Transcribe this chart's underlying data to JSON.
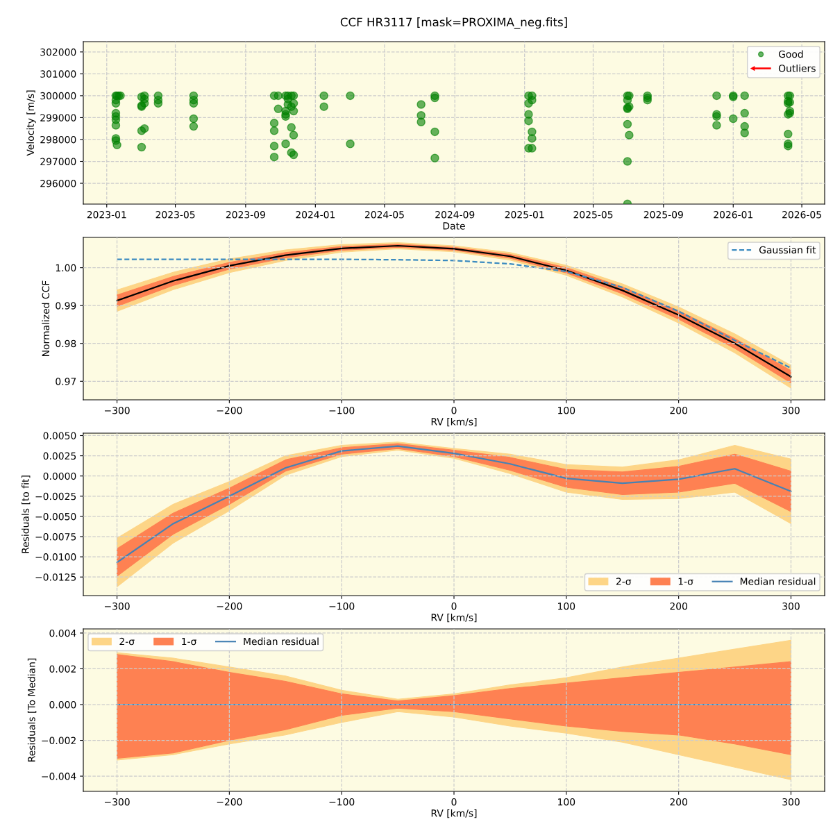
{
  "chart_data": [
    {
      "type": "scatter",
      "title": "CCF HR3117 [mask=PROXIMA_neg.fits]",
      "xlabel": "Date",
      "ylabel": "Velocity [m/s]",
      "xlim": [
        "2022-11-21",
        "2026-06-10"
      ],
      "xticks": [
        {
          "value": "2023-01",
          "label": "2023-01"
        },
        {
          "value": "2023-05",
          "label": "2023-05"
        },
        {
          "value": "2023-09",
          "label": "2023-09"
        },
        {
          "value": "2024-01",
          "label": "2024-01"
        },
        {
          "value": "2024-05",
          "label": "2024-05"
        },
        {
          "value": "2024-09",
          "label": "2024-09"
        },
        {
          "value": "2025-01",
          "label": "2025-01"
        },
        {
          "value": "2025-05",
          "label": "2025-05"
        },
        {
          "value": "2025-09",
          "label": "2025-09"
        },
        {
          "value": "2026-01",
          "label": "2026-01"
        },
        {
          "value": "2026-05",
          "label": "2026-05"
        }
      ],
      "ylim": [
        295050,
        302470
      ],
      "yticks": [
        296000,
        297000,
        298000,
        299000,
        300000,
        301000,
        302000
      ],
      "grid": true,
      "legend": "top right",
      "marker": "circle",
      "series": [
        {
          "name": "Good",
          "color": "#008000",
          "x": [
            "2023-01-17",
            "2023-01-17",
            "2023-01-17",
            "2023-01-17",
            "2023-01-17",
            "2023-01-17",
            "2023-01-17",
            "2023-01-17",
            "2023-01-17",
            "2023-01-19",
            "2023-01-19",
            "2023-01-22",
            "2023-01-25",
            "2023-03-03",
            "2023-03-03",
            "2023-03-03",
            "2023-03-03",
            "2023-03-03",
            "2023-03-08",
            "2023-03-08",
            "2023-03-08",
            "2023-03-08",
            "2023-04-01",
            "2023-04-01",
            "2023-04-01",
            "2023-06-02",
            "2023-06-02",
            "2023-06-02",
            "2023-06-02",
            "2023-06-02",
            "2023-10-21",
            "2023-10-21",
            "2023-10-21",
            "2023-10-21",
            "2023-10-21",
            "2023-10-28",
            "2023-10-28",
            "2023-11-10",
            "2023-11-10",
            "2023-11-10",
            "2023-11-10",
            "2023-11-10",
            "2023-11-14",
            "2023-11-14",
            "2023-11-14",
            "2023-11-20",
            "2023-11-20",
            "2023-11-20",
            "2023-11-20",
            "2023-11-24",
            "2023-11-24",
            "2023-11-24",
            "2023-11-24",
            "2023-11-24",
            "2024-01-16",
            "2024-01-16",
            "2024-03-02",
            "2024-03-02",
            "2024-07-04",
            "2024-07-04",
            "2024-07-04",
            "2024-07-28",
            "2024-07-28",
            "2024-07-28",
            "2024-07-28",
            "2025-01-08",
            "2025-01-08",
            "2025-01-08",
            "2025-01-08",
            "2025-01-08",
            "2025-01-14",
            "2025-01-14",
            "2025-01-14",
            "2025-01-14",
            "2025-01-14",
            "2025-06-30",
            "2025-06-30",
            "2025-06-30",
            "2025-06-30",
            "2025-06-30",
            "2025-06-30",
            "2025-06-30",
            "2025-07-03",
            "2025-07-03",
            "2025-07-03",
            "2025-08-04",
            "2025-08-04",
            "2025-08-04",
            "2025-12-03",
            "2025-12-03",
            "2025-12-03",
            "2025-12-03",
            "2026-01-01",
            "2026-01-01",
            "2026-01-01",
            "2026-01-21",
            "2026-01-21",
            "2026-01-21",
            "2026-01-21",
            "2026-04-07",
            "2026-04-07",
            "2026-04-07",
            "2026-04-07",
            "2026-04-07",
            "2026-04-07",
            "2026-04-07",
            "2026-04-10",
            "2026-04-10",
            "2026-04-10",
            "2026-04-10"
          ],
          "values": [
            300000,
            299800,
            299650,
            299200,
            299050,
            298900,
            298650,
            298050,
            297950,
            297750,
            300000,
            300000,
            300000,
            299950,
            299550,
            299500,
            298400,
            297650,
            300000,
            299850,
            299650,
            298500,
            300000,
            299800,
            299650,
            300000,
            299800,
            299650,
            298950,
            298600,
            300000,
            298750,
            298400,
            297700,
            297200,
            300000,
            299400,
            300000,
            299300,
            299150,
            299050,
            297800,
            300000,
            299850,
            299600,
            300000,
            299500,
            298550,
            297400,
            300000,
            299650,
            299300,
            298200,
            297300,
            300000,
            299500,
            300000,
            297800,
            299600,
            299100,
            298800,
            300000,
            299900,
            298350,
            297150,
            300000,
            299650,
            299150,
            298850,
            297600,
            300000,
            299800,
            298350,
            298050,
            297600,
            300000,
            299800,
            299450,
            299400,
            298700,
            297000,
            295060,
            300000,
            299500,
            298200,
            300000,
            299900,
            299800,
            300000,
            299150,
            299050,
            298650,
            300000,
            299950,
            298950,
            300000,
            299200,
            298600,
            298300,
            300000,
            299750,
            299650,
            299150,
            298250,
            297800,
            297700,
            300000,
            299700,
            299300,
            299200
          ]
        },
        {
          "name": "Outliers",
          "color": "#ff0000",
          "marker": "arrow"
        }
      ]
    },
    {
      "type": "line",
      "xlabel": "RV [km/s]",
      "ylabel": "Normalized CCF",
      "x": [
        -300,
        -250,
        -200,
        -150,
        -100,
        -50,
        0,
        50,
        100,
        150,
        200,
        250,
        300
      ],
      "xlim": [
        -330,
        330
      ],
      "xticks": [
        {
          "value": -300,
          "label": "−300"
        },
        {
          "value": -200,
          "label": "−200"
        },
        {
          "value": -100,
          "label": "−100"
        },
        0,
        100,
        200,
        300
      ],
      "ylim": [
        0.9651,
        1.008
      ],
      "yticks": [
        {
          "value": 0.97,
          "label": "0.97"
        },
        {
          "value": 0.98,
          "label": "0.98"
        },
        {
          "value": 0.99,
          "label": "0.99"
        },
        {
          "value": 1.0,
          "label": "1.00"
        }
      ],
      "grid": true,
      "legend": "top right",
      "series": [
        {
          "type": "area",
          "color": "#fdd587",
          "values": [
            null,
            null,
            null,
            null,
            null,
            null,
            null,
            null,
            null,
            null,
            null,
            null,
            null
          ],
          "lower": [
            0.9885,
            0.9942,
            0.9987,
            1.0019,
            1.0041,
            1.005,
            1.0042,
            1.002,
            0.998,
            0.9923,
            0.9854,
            0.9775,
            0.9682
          ],
          "upper": [
            0.9941,
            0.9988,
            1.0023,
            1.0047,
            1.0061,
            1.0066,
            1.0058,
            1.004,
            1.0006,
            0.9957,
            0.9896,
            0.9825,
            0.9742
          ]
        },
        {
          "type": "area",
          "color": "#fe8152",
          "values": [
            null,
            null,
            null,
            null,
            null,
            null,
            null,
            null,
            null,
            null,
            null,
            null,
            null
          ],
          "lower": [
            0.9898,
            0.9953,
            0.9996,
            1.0026,
            1.0046,
            1.0054,
            1.0046,
            1.0025,
            0.9986,
            0.9931,
            0.9864,
            0.9787,
            0.9696
          ],
          "upper": [
            0.9928,
            0.9977,
            1.0014,
            1.004,
            1.0056,
            1.0062,
            1.0054,
            1.0035,
            1.0,
            0.9949,
            0.9886,
            0.9813,
            0.9728
          ]
        },
        {
          "color": "#000000",
          "line_style": "solid",
          "values": [
            0.9913,
            0.9965,
            1.0005,
            1.0033,
            1.0051,
            1.0058,
            1.005,
            1.003,
            0.9993,
            0.994,
            0.9875,
            0.98,
            0.9712
          ]
        },
        {
          "name": "Gaussian fit",
          "color": "#3a8ac0",
          "line_style": "dashed",
          "values": [
            1.0022,
            1.0022,
            1.0022,
            1.0022,
            1.0022,
            1.0021,
            1.0019,
            1.001,
            0.999,
            0.9948,
            0.9885,
            0.9808,
            0.9735
          ]
        }
      ]
    },
    {
      "type": "line",
      "xlabel": "RV [km/s]",
      "ylabel": "Residuals [to fit]",
      "x": [
        -300,
        -250,
        -200,
        -150,
        -100,
        -50,
        0,
        50,
        100,
        150,
        200,
        250,
        300
      ],
      "xlim": [
        -330,
        330
      ],
      "xticks": [
        {
          "value": -300,
          "label": "−300"
        },
        {
          "value": -200,
          "label": "−200"
        },
        {
          "value": -100,
          "label": "−100"
        },
        0,
        100,
        200,
        300
      ],
      "ylim": [
        -0.0148,
        0.0053
      ],
      "yticks": [
        {
          "value": -0.0125,
          "label": "−0.0125"
        },
        {
          "value": -0.01,
          "label": "−0.0100"
        },
        {
          "value": -0.0075,
          "label": "−0.0075"
        },
        {
          "value": -0.005,
          "label": "−0.0050"
        },
        {
          "value": -0.0025,
          "label": "−0.0025"
        },
        {
          "value": 0,
          "label": "0.0000"
        },
        {
          "value": 0.0025,
          "label": "0.0025"
        },
        {
          "value": 0.005,
          "label": "0.0050"
        }
      ],
      "grid": true,
      "legend": "bottom right",
      "series": [
        {
          "name": "2-σ",
          "type": "area",
          "color": "#fdd587",
          "values": [
            null,
            null,
            null,
            null,
            null,
            null,
            null,
            null,
            null,
            null,
            null,
            null,
            null
          ],
          "lower": [
            -0.0137,
            -0.0083,
            -0.0043,
            0.0001,
            0.0024,
            0.0032,
            0.0022,
            0.0003,
            -0.002,
            -0.0029,
            -0.0028,
            -0.002,
            -0.0059
          ],
          "upper": [
            -0.0077,
            -0.0035,
            -0.0007,
            0.0025,
            0.0038,
            0.0042,
            0.0034,
            0.0027,
            0.0014,
            0.0011,
            0.002,
            0.0038,
            0.0021
          ]
        },
        {
          "name": "1-σ",
          "type": "area",
          "color": "#fe8152",
          "values": [
            null,
            null,
            null,
            null,
            null,
            null,
            null,
            null,
            null,
            null,
            null,
            null,
            null
          ],
          "lower": [
            -0.0124,
            -0.0072,
            -0.0035,
            0.0006,
            0.0027,
            0.0034,
            0.0024,
            0.0007,
            -0.0014,
            -0.0023,
            -0.002,
            -0.0009,
            -0.0044
          ],
          "upper": [
            -0.009,
            -0.0046,
            -0.0015,
            0.002,
            0.0035,
            0.004,
            0.0032,
            0.0023,
            0.0008,
            0.0005,
            0.0012,
            0.0027,
            0.0006
          ]
        },
        {
          "name": "Median residual",
          "color": "#4682b4",
          "line_style": "solid",
          "values": [
            -0.0107,
            -0.0059,
            -0.0025,
            0.001,
            0.0031,
            0.0037,
            0.0028,
            0.0015,
            -0.0003,
            -0.0009,
            -0.0004,
            0.0009,
            -0.0019
          ]
        }
      ]
    },
    {
      "type": "line",
      "xlabel": "RV [km/s]",
      "ylabel": "Residuals [To Median]",
      "x": [
        -300,
        -250,
        -200,
        -150,
        -100,
        -50,
        0,
        50,
        100,
        150,
        200,
        250,
        300
      ],
      "xlim": [
        -330,
        330
      ],
      "xticks": [
        {
          "value": -300,
          "label": "−300"
        },
        {
          "value": -200,
          "label": "−200"
        },
        {
          "value": -100,
          "label": "−100"
        },
        0,
        100,
        200,
        300
      ],
      "ylim": [
        -0.00485,
        0.00423
      ],
      "yticks": [
        {
          "value": -0.004,
          "label": "−0.004"
        },
        {
          "value": -0.002,
          "label": "−0.002"
        },
        {
          "value": 0,
          "label": "0.000"
        },
        {
          "value": 0.002,
          "label": "0.002"
        },
        {
          "value": 0.004,
          "label": "0.004"
        }
      ],
      "grid": true,
      "legend": "top left",
      "series": [
        {
          "name": "2-σ",
          "type": "area",
          "color": "#fdd587",
          "values": [
            null,
            null,
            null,
            null,
            null,
            null,
            null,
            null,
            null,
            null,
            null,
            null,
            null
          ],
          "lower": [
            -0.0031,
            -0.0028,
            -0.0022,
            -0.0017,
            -0.001,
            -0.0004,
            -0.0007,
            -0.0012,
            -0.0016,
            -0.0021,
            -0.0028,
            -0.0035,
            -0.0042
          ],
          "upper": [
            0.0029,
            0.0026,
            0.0021,
            0.0016,
            0.0008,
            0.0003,
            0.0006,
            0.0011,
            0.0015,
            0.0021,
            0.0026,
            0.0031,
            0.0036
          ]
        },
        {
          "name": "1-σ",
          "type": "area",
          "color": "#fe8152",
          "values": [
            null,
            null,
            null,
            null,
            null,
            null,
            null,
            null,
            null,
            null,
            null,
            null,
            null
          ],
          "lower": [
            -0.003,
            -0.0027,
            -0.002,
            -0.0014,
            -0.0006,
            -0.0002,
            -0.0004,
            -0.0008,
            -0.0012,
            -0.0015,
            -0.0017,
            -0.0022,
            -0.0028
          ],
          "upper": [
            0.0028,
            0.0024,
            0.0018,
            0.0013,
            0.0006,
            0.0002,
            0.0005,
            0.0009,
            0.0012,
            0.0015,
            0.0018,
            0.0021,
            0.0024
          ]
        },
        {
          "name": "Median residual",
          "color": "#4682b4",
          "line_style": "solid",
          "values": [
            0,
            0,
            0,
            0,
            0,
            0,
            0,
            0,
            0,
            0,
            0,
            0,
            0
          ]
        }
      ]
    }
  ]
}
